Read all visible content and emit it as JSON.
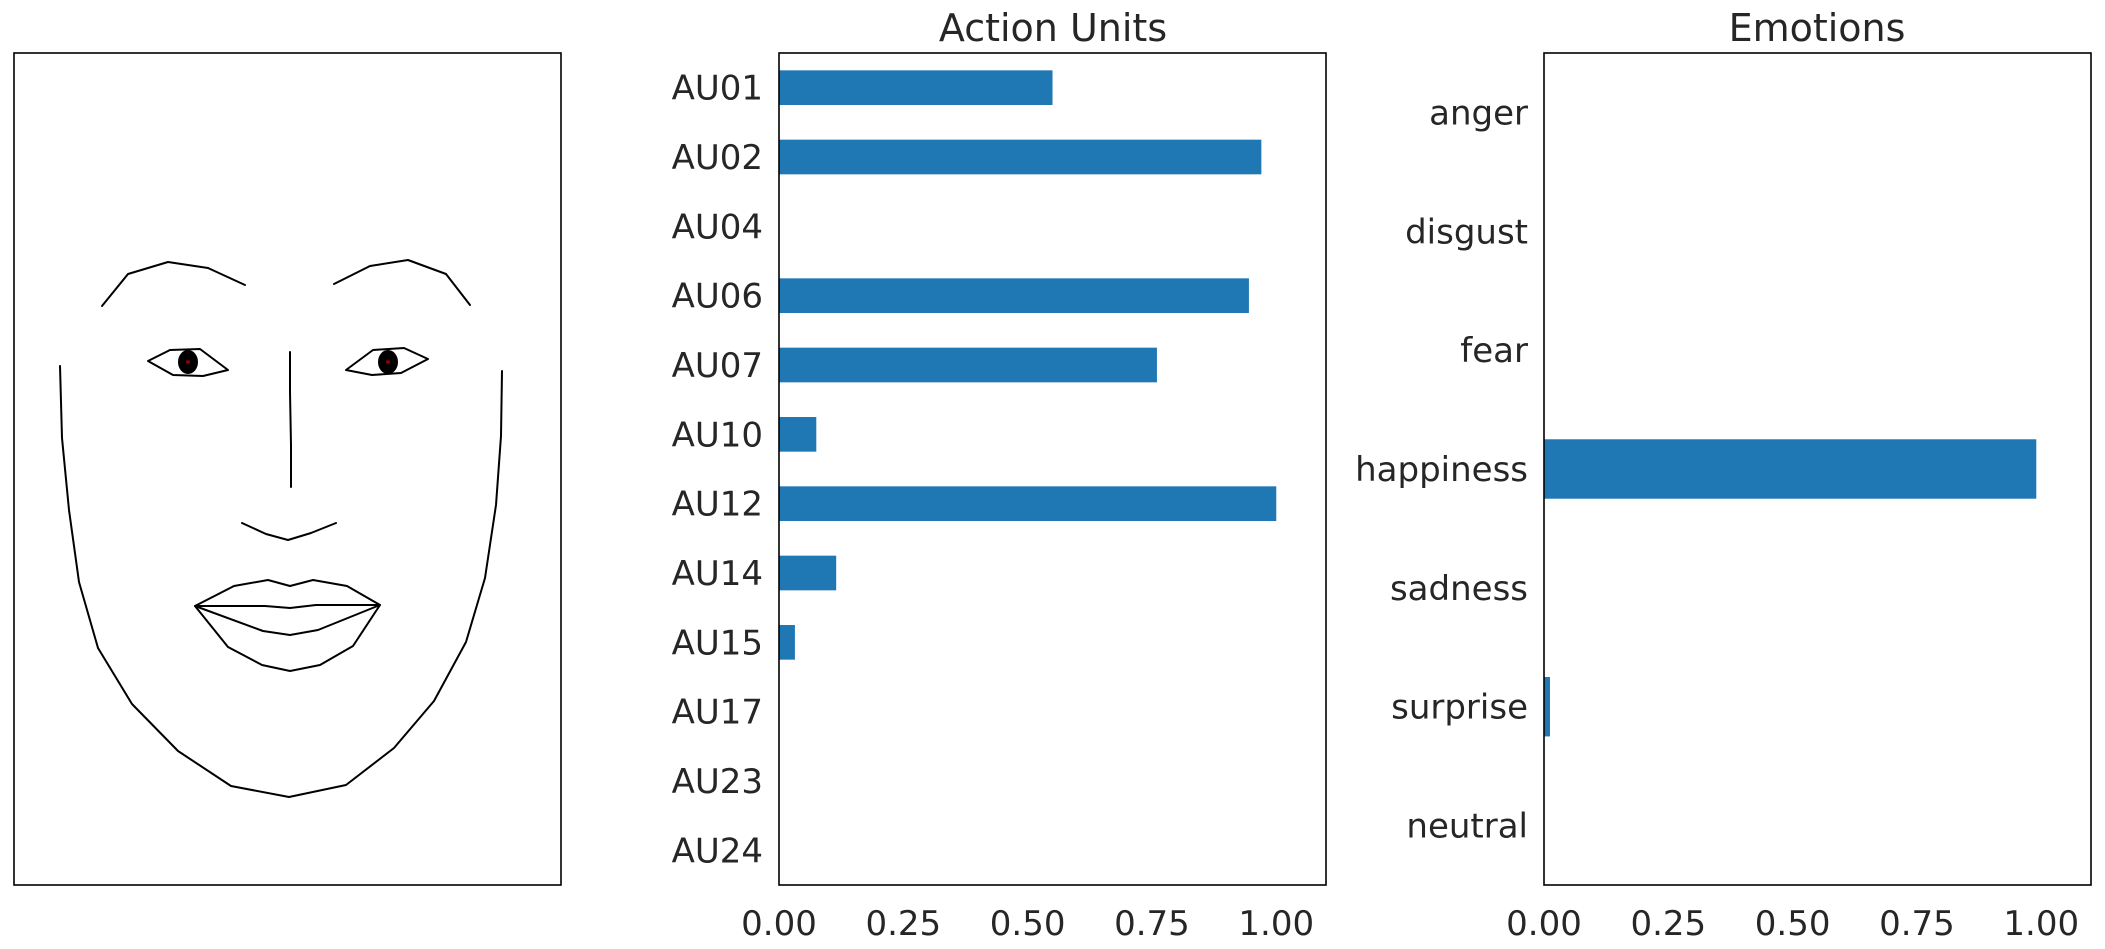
{
  "chart_data": [
    {
      "type": "line",
      "subtype": "face-landmark-plot",
      "title": "",
      "axes_visible": false,
      "shapes": [
        "face-outline",
        "left-eyebrow",
        "right-eyebrow",
        "left-eye",
        "right-eye",
        "left-pupil",
        "right-pupil",
        "nose-bridge",
        "nose-base",
        "outer-lips",
        "inner-lips"
      ]
    },
    {
      "type": "bar",
      "orientation": "horizontal",
      "title": "Action Units",
      "categories": [
        "AU01",
        "AU02",
        "AU04",
        "AU06",
        "AU07",
        "AU10",
        "AU12",
        "AU14",
        "AU15",
        "AU17",
        "AU23",
        "AU24"
      ],
      "values": [
        0.55,
        0.97,
        0.0,
        0.945,
        0.76,
        0.075,
        1.0,
        0.115,
        0.032,
        0.0,
        0.0,
        0.0
      ],
      "xlabel": "",
      "ylabel": "",
      "xlim": [
        0,
        1.1
      ],
      "xticks": [
        "0.00",
        "0.25",
        "0.50",
        "0.75",
        "1.00"
      ],
      "bar_color": "#1f77b4",
      "grid": false
    },
    {
      "type": "bar",
      "orientation": "horizontal",
      "title": "Emotions",
      "categories": [
        "anger",
        "disgust",
        "fear",
        "happiness",
        "sadness",
        "surprise",
        "neutral"
      ],
      "values": [
        0.0,
        0.0,
        0.0,
        0.99,
        0.0,
        0.012,
        0.0
      ],
      "xlabel": "",
      "ylabel": "",
      "xlim": [
        0,
        1.1
      ],
      "xticks": [
        "0.00",
        "0.25",
        "0.50",
        "0.75",
        "1.00"
      ],
      "bar_color": "#1f77b4",
      "grid": false
    }
  ],
  "colors": {
    "bar": "#1f77b4",
    "text": "#262626",
    "pupil": "#000000",
    "pupil_center": "#8b0000"
  }
}
